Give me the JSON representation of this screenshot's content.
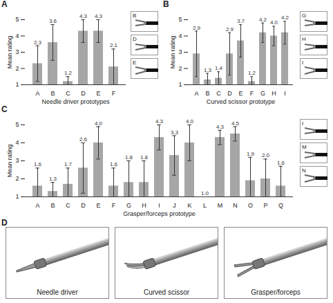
{
  "chart_data": [
    {
      "panel": "A",
      "type": "bar",
      "xlabel": "Needle driver prototypes",
      "ylabel": "Mean rating",
      "categories": [
        "A",
        "B",
        "C",
        "D",
        "E",
        "F"
      ],
      "values": [
        2.3,
        3.6,
        1.2,
        4.3,
        4.3,
        2.1
      ],
      "value_labels": [
        "2.3",
        "3.6",
        "1.2",
        "4.3",
        "4.3",
        "2.1"
      ],
      "errors": [
        1.1,
        1.1,
        0.3,
        0.7,
        0.7,
        1.1
      ],
      "color": "#a6a6a6",
      "ylim": [
        1,
        5
      ],
      "yticks": [
        1,
        2,
        3,
        4,
        5
      ],
      "data_labels": true,
      "insets": [
        "B",
        "D",
        "E"
      ]
    },
    {
      "panel": "B",
      "type": "bar",
      "xlabel": "Curved scissor prototype",
      "ylabel": "Mean rating",
      "categories": [
        "A",
        "B",
        "C",
        "D",
        "E",
        "F",
        "G",
        "H",
        "I"
      ],
      "values": [
        2.9,
        1.3,
        1.4,
        2.9,
        3.7,
        1.2,
        4.2,
        4.0,
        4.2
      ],
      "value_labels": [
        "2.9",
        "1.3",
        "1.4",
        "2.9",
        "3.7",
        "1.2",
        "4.2",
        "4.0",
        "4.2"
      ],
      "errors": [
        1.4,
        0.4,
        0.4,
        1.3,
        1.0,
        0.3,
        0.6,
        0.6,
        0.7
      ],
      "color": "#a6a6a6",
      "ylim": [
        1,
        5
      ],
      "yticks": [
        1,
        2,
        3,
        4,
        5
      ],
      "data_labels": true,
      "insets": [
        "G",
        "H",
        "I"
      ]
    },
    {
      "panel": "C",
      "type": "bar",
      "xlabel": "Grasper/forceps prototype",
      "ylabel": "Mean rating",
      "categories": [
        "A",
        "B",
        "C",
        "D",
        "E",
        "F",
        "G",
        "H",
        "I",
        "J",
        "K",
        "L",
        "M",
        "N",
        "O",
        "P",
        "Q"
      ],
      "values": [
        1.6,
        1.3,
        1.7,
        2.6,
        4.0,
        1.6,
        1.8,
        1.8,
        4.3,
        3.3,
        4.0,
        1.0,
        4.3,
        4.5,
        1.9,
        2.0,
        1.6
      ],
      "value_labels": [
        "1.6",
        "1.3",
        "1.7",
        "2.6",
        "4.0",
        "1.6",
        "1.8",
        "1.8",
        "4.3",
        "3.3",
        "4.0",
        "1.0",
        "4.3",
        "4.5",
        "1.9",
        "2.0",
        "1.6"
      ],
      "errors": [
        1.0,
        0.5,
        0.9,
        1.4,
        0.9,
        1.0,
        1.2,
        1.2,
        0.7,
        1.1,
        1.0,
        0.0,
        0.4,
        0.4,
        1.3,
        1.1,
        1.1
      ],
      "color": "#a6a6a6",
      "ylim": [
        1,
        5
      ],
      "yticks": [
        1,
        2,
        3,
        4,
        5
      ],
      "data_labels": true,
      "insets": [
        "I",
        "M",
        "N"
      ]
    }
  ],
  "photos": {
    "panel": "D",
    "captions": [
      "Needle driver",
      "Curved scissor",
      "Grasper/forceps"
    ]
  }
}
